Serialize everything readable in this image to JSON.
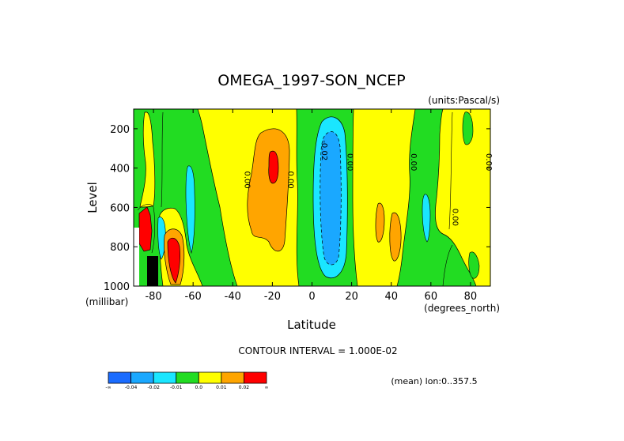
{
  "chart_data": {
    "type": "heatmap",
    "title": "OMEGA_1997-SON_NCEP",
    "units_label": "(units:Pascal/s)",
    "xlabel": "Latitude",
    "xunits": "(degrees_north)",
    "ylabel": "Level",
    "yunits": "(millibar)",
    "xlim": [
      -90,
      90
    ],
    "ylim": [
      1000,
      100
    ],
    "x_ticks": [
      -80,
      -60,
      -40,
      -20,
      0,
      20,
      40,
      60,
      80
    ],
    "x_tick_labels": [
      "-80",
      "-60",
      "-40",
      "-20",
      "0",
      "20",
      "40",
      "60",
      "80"
    ],
    "y_ticks": [
      200,
      400,
      600,
      800,
      1000
    ],
    "y_tick_labels": [
      "200",
      "400",
      "600",
      "800",
      "1000"
    ],
    "contour_interval_text": "CONTOUR INTERVAL = 1.000E-02",
    "mean_text": "(mean) lon:0..357.5",
    "colorbar": {
      "colors": [
        "#1a6cff",
        "#1aa8ff",
        "#1ae6ff",
        "#22dc22",
        "#ffff00",
        "#ffa500",
        "#ff0000"
      ],
      "tick_labels": [
        "-∞",
        "-0.04",
        "-0.02",
        "-0.01",
        "0.0",
        "0.01",
        "0.02",
        "∞"
      ]
    },
    "contour_labels": [
      {
        "text": "0.00",
        "lat": -34,
        "lev": 460
      },
      {
        "text": "0.00",
        "lat": -12,
        "lev": 460
      },
      {
        "text": "-0.02",
        "lat": 5,
        "lev": 310
      },
      {
        "text": "0.00",
        "lat": 18,
        "lev": 370
      },
      {
        "text": "0.00",
        "lat": 50,
        "lev": 370
      },
      {
        "text": "0.00",
        "lat": 71,
        "lev": 650
      },
      {
        "text": "0.00",
        "lat": 88,
        "lev": 370
      }
    ],
    "regions": [
      {
        "name": "background",
        "level": -0.01
      },
      {
        "name": "south-polar-yellow",
        "level": 0.0,
        "lat": [
          -86,
          -77
        ],
        "lev": [
          100,
          600
        ]
      },
      {
        "name": "south-subpolar-yellow",
        "level": 0.0,
        "lat": [
          -75,
          -58
        ],
        "lev": [
          520,
          1000
        ]
      },
      {
        "name": "south-subpolar-orange",
        "level": 0.01,
        "lat": [
          -73,
          -65
        ],
        "lev": [
          650,
          990
        ]
      },
      {
        "name": "south-subpolar-red",
        "level": 0.02,
        "lat": [
          -72,
          -66
        ],
        "lev": [
          700,
          980
        ]
      },
      {
        "name": "south-cyan-strip",
        "level": -0.02,
        "lat": [
          -62,
          -58
        ],
        "lev": [
          400,
          900
        ]
      },
      {
        "name": "subtropical-yellow-south",
        "level": 0.0,
        "lat": [
          -45,
          -13
        ],
        "lev": [
          100,
          1000
        ]
      },
      {
        "name": "subtropical-orange-south",
        "level": 0.01,
        "lat": [
          -27,
          -14
        ],
        "lev": [
          180,
          900
        ]
      },
      {
        "name": "subtropical-red-south",
        "level": 0.02,
        "lat": [
          -20,
          -15
        ],
        "lev": [
          320,
          460
        ]
      },
      {
        "name": "equatorial-cyan",
        "level": -0.02,
        "lat": [
          -1,
          16
        ],
        "lev": [
          160,
          960
        ]
      },
      {
        "name": "equatorial-blue",
        "level": -0.04,
        "lat": [
          2,
          13
        ],
        "lev": [
          210,
          880
        ]
      },
      {
        "name": "subtropical-yellow-north",
        "level": 0.0,
        "lat": [
          19,
          50
        ],
        "lev": [
          100,
          1000
        ]
      },
      {
        "name": "subtropical-orange-north-a",
        "level": 0.01,
        "lat": [
          33,
          36
        ],
        "lev": [
          570,
          790
        ]
      },
      {
        "name": "subtropical-orange-north-b",
        "level": 0.01,
        "lat": [
          41,
          46
        ],
        "lev": [
          620,
          880
        ]
      },
      {
        "name": "north-cyan-strip",
        "level": -0.02,
        "lat": [
          56,
          60
        ],
        "lev": [
          530,
          780
        ]
      },
      {
        "name": "north-yellow",
        "level": 0.0,
        "lat": [
          61,
          90
        ],
        "lev": [
          100,
          1000
        ]
      }
    ]
  }
}
